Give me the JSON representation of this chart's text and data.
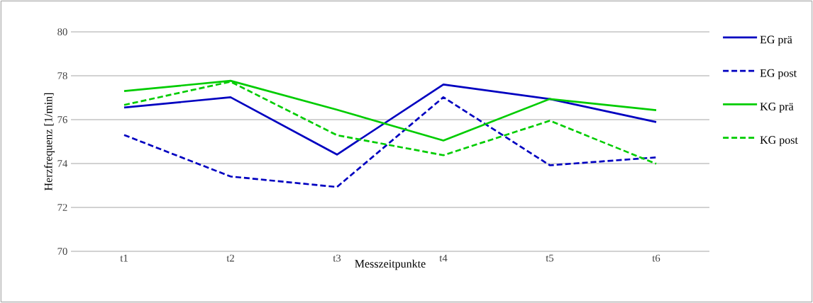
{
  "chart_data": {
    "type": "line",
    "xlabel": "Messzeitpunkte",
    "ylabel": "Herzfrequenz [1/min]",
    "categories": [
      "t1",
      "t2",
      "t3",
      "t4",
      "t5",
      "t6"
    ],
    "ylim": [
      70,
      80
    ],
    "yticks": [
      70,
      72,
      74,
      76,
      78,
      80
    ],
    "grid": "y",
    "legend": "right",
    "marker": "none",
    "series": [
      {
        "name": "EG prä",
        "color": "#0000c0",
        "line_style": "solid",
        "values": [
          76.55,
          77.02,
          74.41,
          77.6,
          76.94,
          75.89
        ]
      },
      {
        "name": "EG post",
        "color": "#0000c0",
        "line_style": "dashed",
        "values": [
          75.3,
          73.41,
          72.93,
          77.02,
          73.92,
          74.28
        ]
      },
      {
        "name": "KG prä",
        "color": "#00cc00",
        "line_style": "solid",
        "values": [
          77.3,
          77.77,
          76.45,
          75.05,
          76.94,
          76.43
        ]
      },
      {
        "name": "KG post",
        "color": "#00cc00",
        "line_style": "dashed",
        "values": [
          76.67,
          77.73,
          75.29,
          74.38,
          75.95,
          73.99
        ]
      }
    ]
  }
}
